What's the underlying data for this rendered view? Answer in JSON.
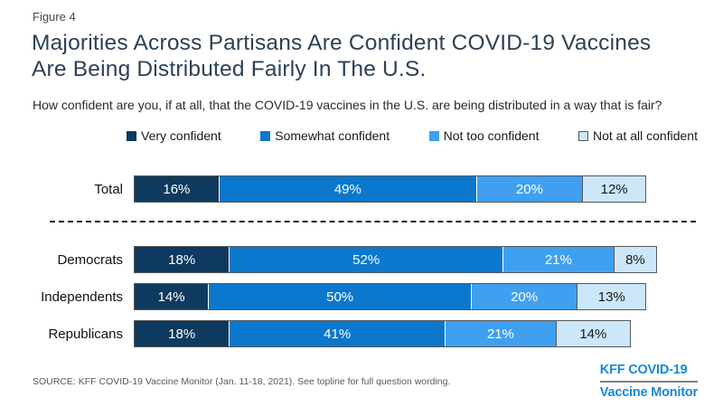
{
  "figure_label": "Figure 4",
  "title": "Majorities Across Partisans Are Confident COVID-19 Vaccines Are Being Distributed Fairly In The U.S.",
  "subtitle": "How confident are you, if at all, that the COVID-19 vaccines in the U.S. are being distributed in a way that is fair?",
  "source": "SOURCE: KFF COVID-19 Vaccine Monitor (Jan. 11-18, 2021). See topline for full question wording.",
  "logo": {
    "line1": "KFF COVID-19",
    "line2": "Vaccine Monitor",
    "color": "#1787d8"
  },
  "colors": {
    "title": "#2e4156",
    "bar_border": "#58595b",
    "divider": "#1a1a1a"
  },
  "chart_data": {
    "type": "bar",
    "orientation": "horizontal_stacked",
    "title": "Majorities Across Partisans Are Confident COVID-19 Vaccines Are Being Distributed Fairly In The U.S.",
    "categories": [
      "Total",
      "Democrats",
      "Independents",
      "Republicans"
    ],
    "series": [
      {
        "name": "Very confident",
        "color": "#0d3a5e",
        "text_color": "#ffffff",
        "values": [
          16,
          18,
          14,
          18
        ]
      },
      {
        "name": "Somewhat confident",
        "color": "#0b78cd",
        "text_color": "#ffffff",
        "values": [
          49,
          52,
          50,
          41
        ]
      },
      {
        "name": "Not too confident",
        "color": "#3fa0f0",
        "text_color": "#ffffff",
        "values": [
          20,
          21,
          20,
          21
        ]
      },
      {
        "name": "Not at all confident",
        "color": "#cce6fa",
        "text_color": "#1a1a1a",
        "values": [
          12,
          8,
          13,
          14
        ],
        "swatch_border": "#58595b"
      }
    ],
    "value_suffix": "%",
    "xlim": [
      0,
      100
    ],
    "legend_position": "top",
    "grid": false
  }
}
